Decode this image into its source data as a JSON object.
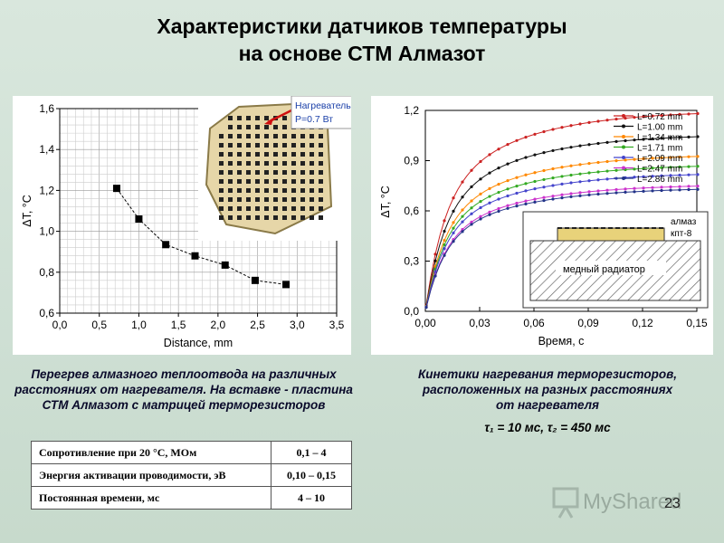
{
  "title": {
    "line1": "Характеристики датчиков температуры",
    "line2": "на основе СТМ Алмазот"
  },
  "inset": {
    "callout": [
      "Нагреватель",
      "P=0.7 Вт"
    ]
  },
  "captions": {
    "left": [
      "Перегрев алмазного теплоотвода на различных",
      "расстояниях от нагревателя. На вставке - пластина",
      "СТМ Алмазот с матрицей терморезисторов"
    ],
    "right": [
      "Кинетики нагревания терморезисторов,",
      "расположенных на разных расстояниях",
      "от нагревателя"
    ],
    "tau": "τ₁ = 10 мс, τ₂ = 450 мс"
  },
  "table": [
    {
      "label": "Сопротивление при  20 °С,  МОм",
      "value": "0,1 – 4"
    },
    {
      "label": "Энергия активации проводимости, эВ",
      "value": "0,10 – 0,15"
    },
    {
      "label": "Постоянная времени, мс",
      "value": "4 – 10"
    }
  ],
  "inset2": {
    "diamond_label": [
      "алмаз",
      "кпт-8"
    ],
    "copper_label": "медный радиатор"
  },
  "watermark": "MyShared",
  "page_number": "23",
  "colors": {
    "background": "#cfe0d5",
    "series": [
      "#cc2222",
      "#111111",
      "#ff8800",
      "#33aa22",
      "#4444cc",
      "#cc33cc",
      "#223388"
    ]
  },
  "chart_data": [
    {
      "type": "line",
      "xlabel": "Distance, mm",
      "ylabel": "ΔT, °C",
      "xlim": [
        0.0,
        3.5
      ],
      "ylim": [
        0.6,
        1.6
      ],
      "xticks": [
        "0,0",
        "0,5",
        "1,0",
        "1,5",
        "2,0",
        "2,5",
        "3,0",
        "3,5"
      ],
      "yticks": [
        "0,6",
        "0,8",
        "1,0",
        "1,2",
        "1,4",
        "1,6"
      ],
      "grid": true,
      "x": [
        0.72,
        1.0,
        1.34,
        1.71,
        2.09,
        2.47,
        2.86
      ],
      "y": [
        1.21,
        1.06,
        0.935,
        0.88,
        0.835,
        0.76,
        0.74
      ]
    },
    {
      "type": "line",
      "xlabel": "Время, с",
      "ylabel": "ΔT, °C",
      "xlim": [
        0.0,
        0.15
      ],
      "ylim": [
        0.0,
        1.2
      ],
      "xticks": [
        "0,00",
        "0,03",
        "0,06",
        "0,09",
        "0,12",
        "0,15"
      ],
      "yticks": [
        "0,0",
        "0,3",
        "0,6",
        "0,9",
        "1,2"
      ],
      "grid": false,
      "legend_position": "top-right",
      "series": [
        {
          "name": "L=0.72 mm",
          "final": 1.2
        },
        {
          "name": "L=1.00 mm",
          "final": 1.06
        },
        {
          "name": "L=1.34 mm",
          "final": 0.94
        },
        {
          "name": "L=1.71 mm",
          "final": 0.88
        },
        {
          "name": "L=2.09 mm",
          "final": 0.83
        },
        {
          "name": "L=2.47 mm",
          "final": 0.76
        },
        {
          "name": "L=2.86 mm",
          "final": 0.74
        }
      ]
    }
  ]
}
